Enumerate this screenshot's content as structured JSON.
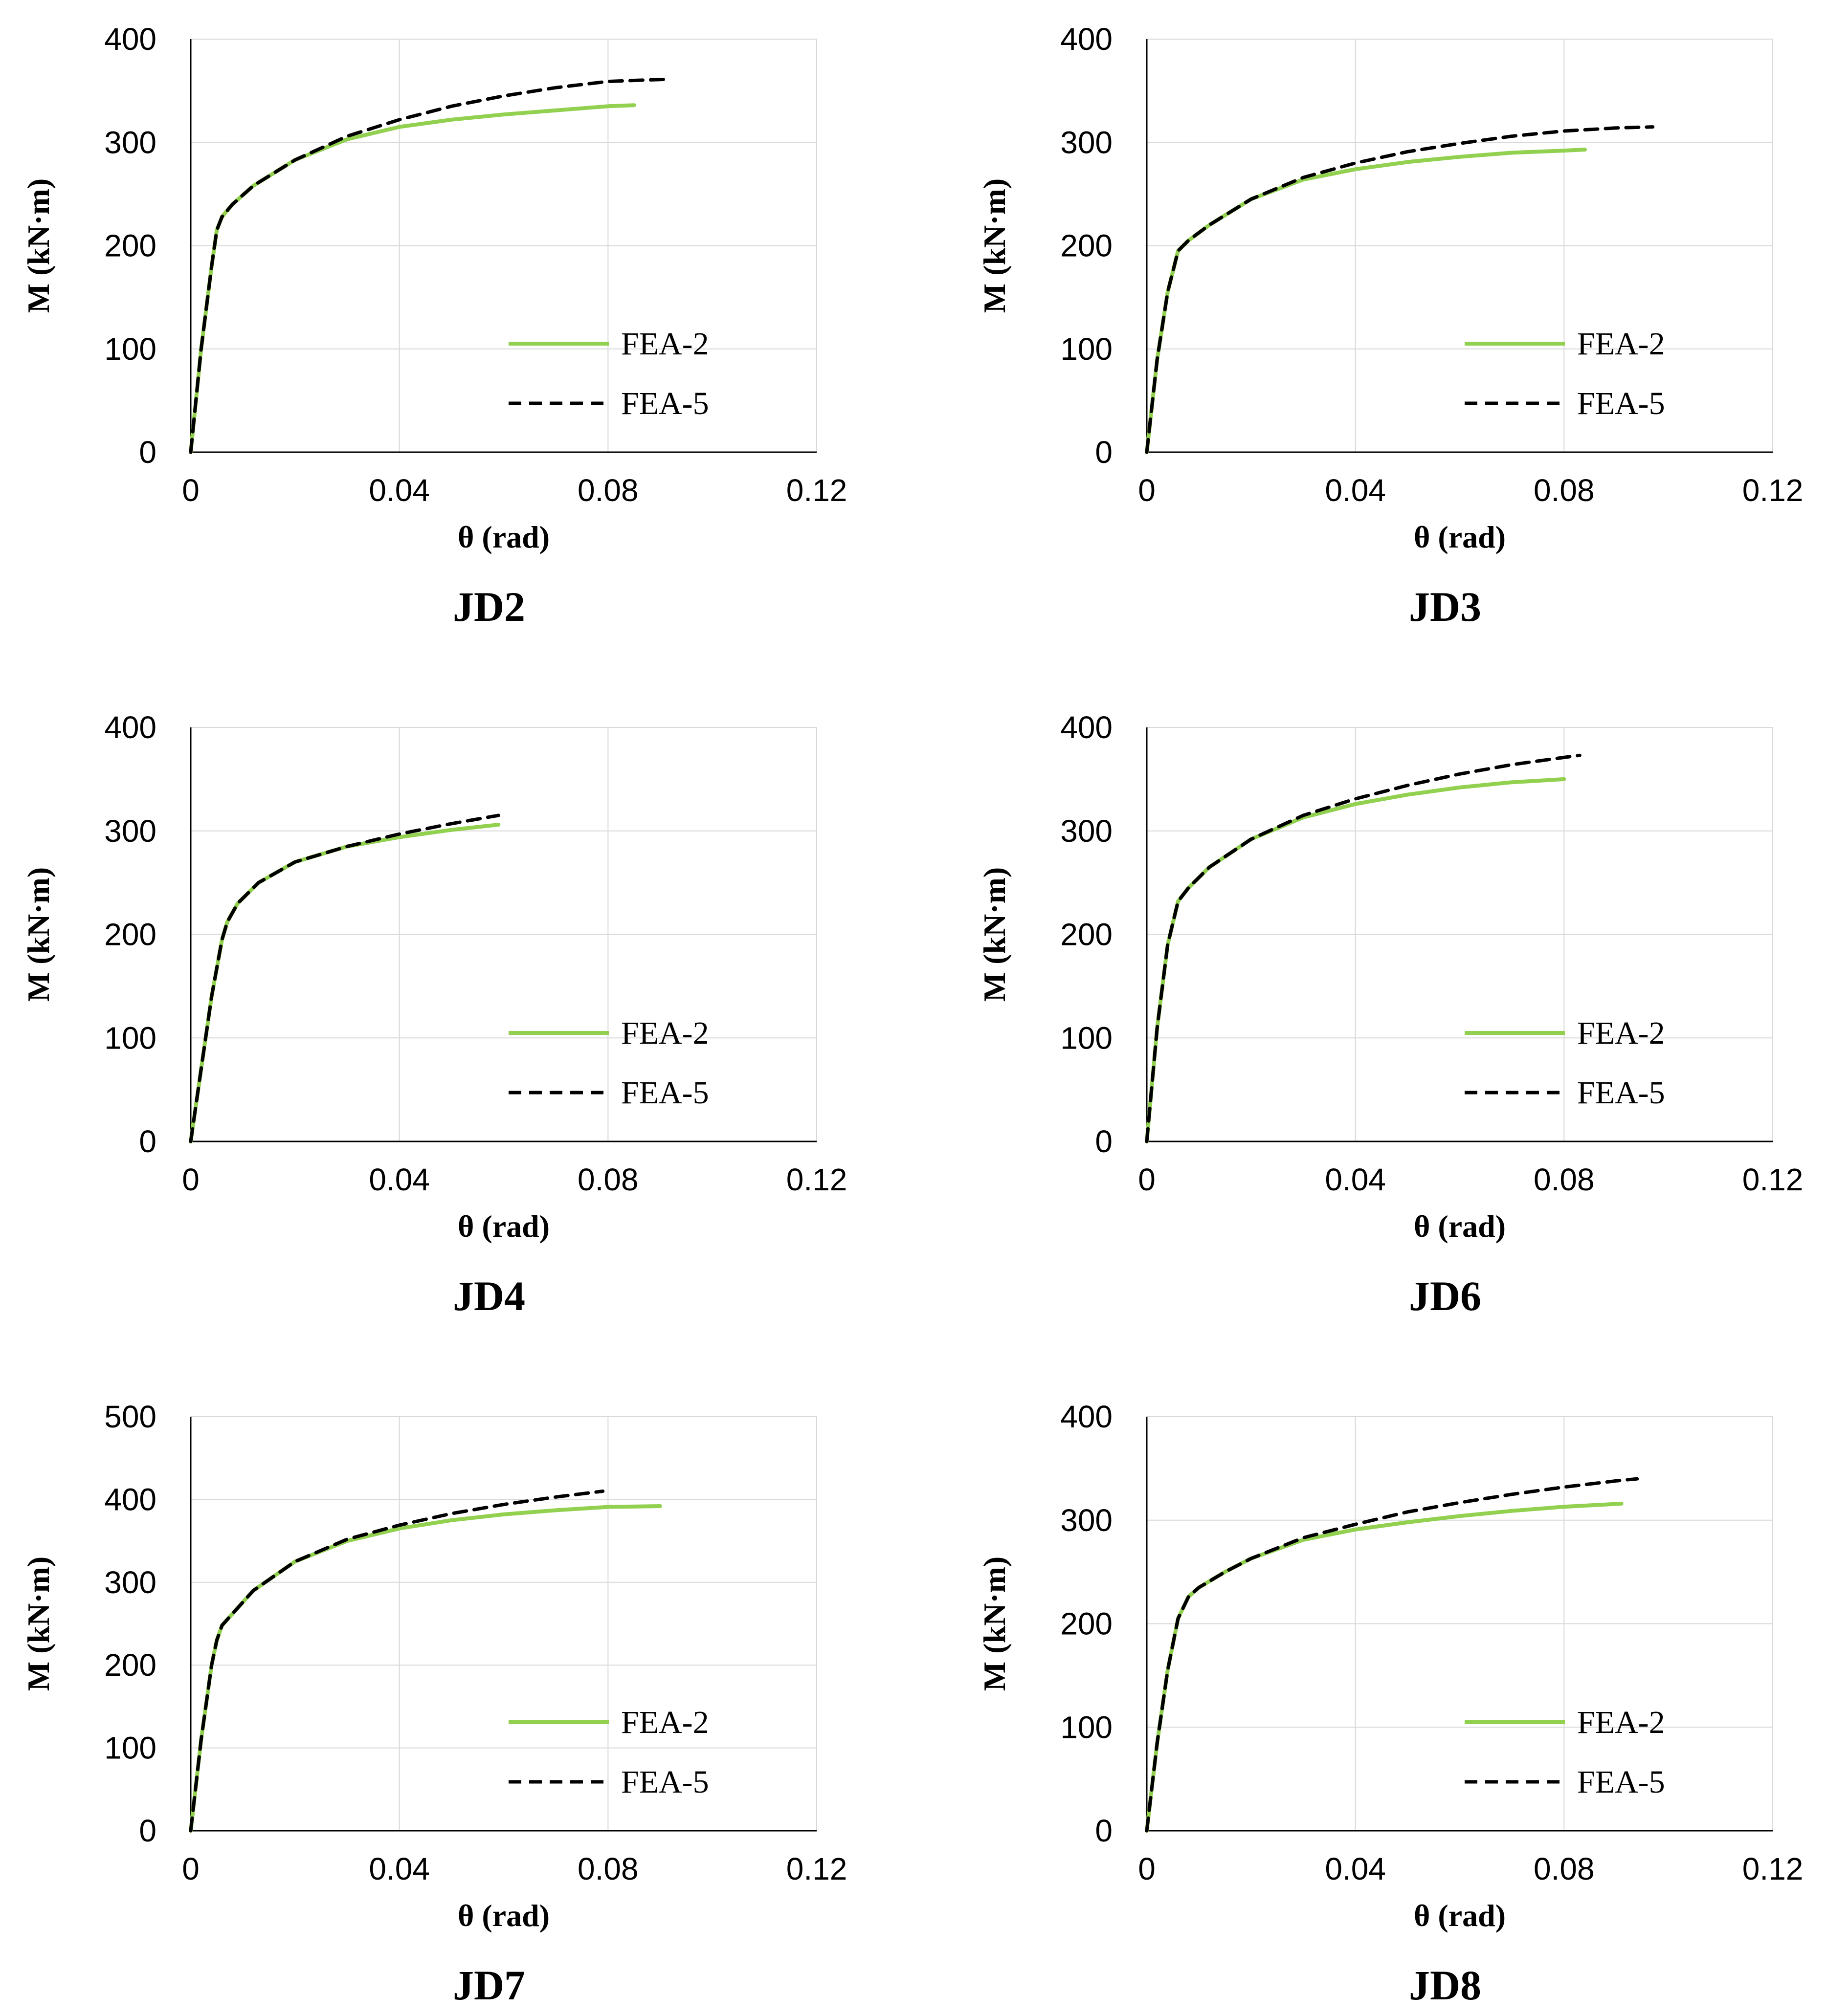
{
  "colors": {
    "fea2": "#92d050",
    "fea5": "#000000",
    "grid": "#d9d9d9"
  },
  "chart_data": [
    {
      "type": "line",
      "title": "JD2",
      "xlabel": "θ (rad)",
      "ylabel": "M (kN·m)",
      "xlim": [
        0,
        0.12
      ],
      "ylim": [
        0,
        400
      ],
      "xticks": [
        "0",
        "0.04",
        "0.08",
        "0.12"
      ],
      "yticks": [
        "0",
        "100",
        "200",
        "300",
        "400"
      ],
      "grid": true,
      "legend": "lower-right",
      "series": [
        {
          "name": "FEA-2",
          "style": "solid",
          "x": [
            0,
            0.002,
            0.004,
            0.005,
            0.006,
            0.008,
            0.012,
            0.02,
            0.03,
            0.04,
            0.05,
            0.06,
            0.07,
            0.08,
            0.085
          ],
          "y": [
            0,
            100,
            180,
            215,
            228,
            240,
            258,
            283,
            303,
            315,
            322,
            327,
            331,
            335,
            336
          ]
        },
        {
          "name": "FEA-5",
          "style": "dashed",
          "x": [
            0,
            0.002,
            0.004,
            0.005,
            0.006,
            0.008,
            0.012,
            0.02,
            0.03,
            0.04,
            0.05,
            0.06,
            0.07,
            0.08,
            0.085,
            0.091
          ],
          "y": [
            0,
            100,
            180,
            215,
            228,
            240,
            258,
            283,
            306,
            322,
            335,
            345,
            353,
            359,
            360,
            361
          ]
        }
      ]
    },
    {
      "type": "line",
      "title": "JD3",
      "xlabel": "θ (rad)",
      "ylabel": "M (kN·m)",
      "xlim": [
        0,
        0.12
      ],
      "ylim": [
        0,
        400
      ],
      "xticks": [
        "0",
        "0.04",
        "0.08",
        "0.12"
      ],
      "yticks": [
        "0",
        "100",
        "200",
        "300",
        "400"
      ],
      "grid": true,
      "legend": "lower-right",
      "series": [
        {
          "name": "FEA-2",
          "style": "solid",
          "x": [
            0,
            0.002,
            0.004,
            0.006,
            0.008,
            0.012,
            0.02,
            0.03,
            0.04,
            0.05,
            0.06,
            0.07,
            0.08,
            0.084
          ],
          "y": [
            0,
            90,
            155,
            195,
            205,
            220,
            245,
            264,
            274,
            281,
            286,
            290,
            292,
            293
          ]
        },
        {
          "name": "FEA-5",
          "style": "dashed",
          "x": [
            0,
            0.002,
            0.004,
            0.006,
            0.008,
            0.012,
            0.02,
            0.03,
            0.04,
            0.05,
            0.06,
            0.07,
            0.08,
            0.09,
            0.097
          ],
          "y": [
            0,
            90,
            155,
            195,
            205,
            220,
            245,
            266,
            280,
            291,
            299,
            306,
            311,
            314,
            315
          ]
        }
      ]
    },
    {
      "type": "line",
      "title": "JD4",
      "xlabel": "θ (rad)",
      "ylabel": "M (kN·m)",
      "xlim": [
        0,
        0.12
      ],
      "ylim": [
        0,
        400
      ],
      "xticks": [
        "0",
        "0.04",
        "0.08",
        "0.12"
      ],
      "yticks": [
        "0",
        "100",
        "200",
        "300",
        "400"
      ],
      "grid": true,
      "legend": "lower-right",
      "series": [
        {
          "name": "FEA-2",
          "style": "solid",
          "x": [
            0,
            0.002,
            0.004,
            0.006,
            0.007,
            0.009,
            0.013,
            0.02,
            0.03,
            0.04,
            0.05,
            0.059
          ],
          "y": [
            0,
            70,
            140,
            195,
            212,
            230,
            250,
            270,
            285,
            294,
            301,
            306
          ]
        },
        {
          "name": "FEA-5",
          "style": "dashed",
          "x": [
            0,
            0.002,
            0.004,
            0.006,
            0.007,
            0.009,
            0.013,
            0.02,
            0.03,
            0.04,
            0.05,
            0.059
          ],
          "y": [
            0,
            70,
            140,
            195,
            212,
            230,
            250,
            270,
            285,
            297,
            307,
            315
          ]
        }
      ]
    },
    {
      "type": "line",
      "title": "JD6",
      "xlabel": "θ (rad)",
      "ylabel": "M (kN·m)",
      "xlim": [
        0,
        0.12
      ],
      "ylim": [
        0,
        400
      ],
      "xticks": [
        "0",
        "0.04",
        "0.08",
        "0.12"
      ],
      "yticks": [
        "0",
        "100",
        "200",
        "300",
        "400"
      ],
      "grid": true,
      "legend": "lower-right",
      "series": [
        {
          "name": "FEA-2",
          "style": "solid",
          "x": [
            0,
            0.002,
            0.004,
            0.006,
            0.008,
            0.012,
            0.02,
            0.03,
            0.04,
            0.05,
            0.06,
            0.07,
            0.08
          ],
          "y": [
            0,
            110,
            190,
            232,
            245,
            265,
            292,
            313,
            326,
            335,
            342,
            347,
            350
          ]
        },
        {
          "name": "FEA-5",
          "style": "dashed",
          "x": [
            0,
            0.002,
            0.004,
            0.006,
            0.008,
            0.012,
            0.02,
            0.03,
            0.04,
            0.05,
            0.06,
            0.07,
            0.08,
            0.083
          ],
          "y": [
            0,
            110,
            190,
            232,
            245,
            265,
            292,
            315,
            331,
            344,
            355,
            364,
            371,
            373
          ]
        }
      ]
    },
    {
      "type": "line",
      "title": "JD7",
      "xlabel": "θ (rad)",
      "ylabel": "M (kN·m)",
      "xlim": [
        0,
        0.12
      ],
      "ylim": [
        0,
        500
      ],
      "xticks": [
        "0",
        "0.04",
        "0.08",
        "0.12"
      ],
      "yticks": [
        "0",
        "100",
        "200",
        "300",
        "400",
        "500"
      ],
      "grid": true,
      "legend": "lower-right",
      "series": [
        {
          "name": "FEA-2",
          "style": "solid",
          "x": [
            0,
            0.002,
            0.004,
            0.005,
            0.006,
            0.008,
            0.012,
            0.02,
            0.03,
            0.04,
            0.05,
            0.06,
            0.07,
            0.08,
            0.09
          ],
          "y": [
            0,
            110,
            200,
            230,
            248,
            262,
            290,
            325,
            350,
            365,
            375,
            382,
            387,
            391,
            392
          ]
        },
        {
          "name": "FEA-5",
          "style": "dashed",
          "x": [
            0,
            0.002,
            0.004,
            0.005,
            0.006,
            0.008,
            0.012,
            0.02,
            0.03,
            0.04,
            0.05,
            0.06,
            0.07,
            0.079
          ],
          "y": [
            0,
            110,
            200,
            230,
            248,
            262,
            290,
            325,
            352,
            369,
            383,
            394,
            403,
            410
          ]
        }
      ]
    },
    {
      "type": "line",
      "title": "JD8",
      "xlabel": "θ (rad)",
      "ylabel": "M (kN·m)",
      "xlim": [
        0,
        0.12
      ],
      "ylim": [
        0,
        400
      ],
      "xticks": [
        "0",
        "0.04",
        "0.08",
        "0.12"
      ],
      "yticks": [
        "0",
        "100",
        "200",
        "300",
        "400"
      ],
      "grid": true,
      "legend": "lower-right",
      "series": [
        {
          "name": "FEA-2",
          "style": "solid",
          "x": [
            0,
            0.002,
            0.004,
            0.006,
            0.008,
            0.01,
            0.015,
            0.02,
            0.03,
            0.04,
            0.05,
            0.06,
            0.07,
            0.08,
            0.091
          ],
          "y": [
            0,
            85,
            155,
            205,
            226,
            235,
            250,
            263,
            281,
            291,
            298,
            304,
            309,
            313,
            316
          ]
        },
        {
          "name": "FEA-5",
          "style": "dashed",
          "x": [
            0,
            0.002,
            0.004,
            0.006,
            0.008,
            0.01,
            0.015,
            0.02,
            0.03,
            0.04,
            0.05,
            0.06,
            0.07,
            0.08,
            0.09,
            0.094
          ],
          "y": [
            0,
            85,
            155,
            205,
            226,
            235,
            250,
            263,
            283,
            296,
            308,
            317,
            325,
            332,
            338,
            340
          ]
        }
      ]
    }
  ]
}
